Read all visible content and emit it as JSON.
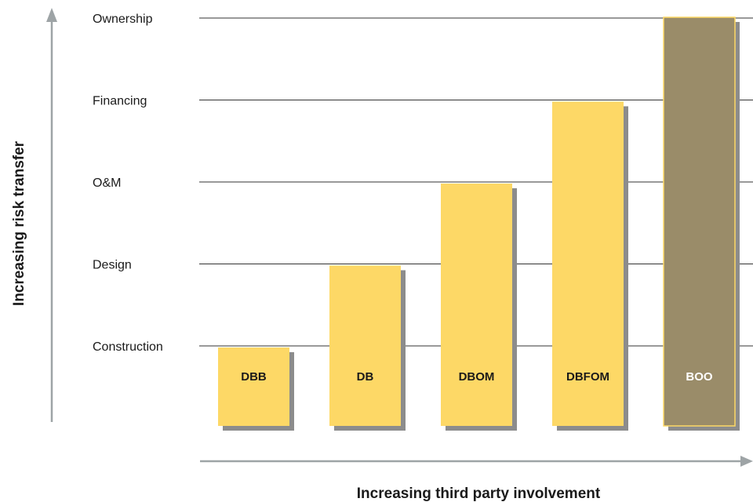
{
  "chart_data": {
    "type": "bar",
    "xlabel": "Increasing third party involvement",
    "ylabel": "Increasing risk transfer",
    "levels": [
      "Construction",
      "Design",
      "O&M",
      "Financing",
      "Ownership"
    ],
    "categories": [
      "DBB",
      "DB",
      "DBOM",
      "DBFOM",
      "BOO"
    ],
    "values": [
      1,
      2,
      3,
      4,
      5
    ],
    "grid": true,
    "colors": {
      "bar": "#fdd866",
      "highlight_bar": "#9a8c69",
      "highlight_text": "#ffffff",
      "text": "#1a1a1a",
      "shadow": "#8c8c8c",
      "gridline": "#333333",
      "axis_arrow": "#9ea4a6"
    },
    "highlight_category": "BOO"
  }
}
